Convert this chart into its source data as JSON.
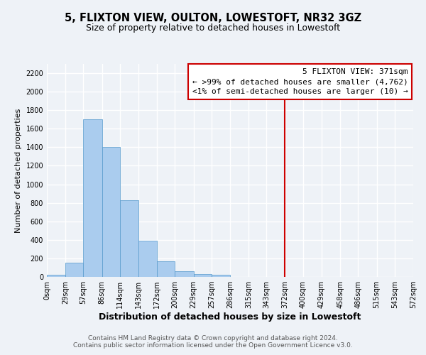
{
  "title": "5, FLIXTON VIEW, OULTON, LOWESTOFT, NR32 3GZ",
  "subtitle": "Size of property relative to detached houses in Lowestoft",
  "xlabel": "Distribution of detached houses by size in Lowestoft",
  "ylabel": "Number of detached properties",
  "bar_edges": [
    0,
    29,
    57,
    86,
    114,
    143,
    172,
    200,
    229,
    257,
    286,
    315,
    343,
    372,
    400,
    429,
    458,
    486,
    515,
    543,
    572
  ],
  "bar_heights": [
    20,
    155,
    1700,
    1400,
    830,
    390,
    165,
    65,
    30,
    20,
    0,
    0,
    0,
    0,
    0,
    0,
    0,
    0,
    0,
    0
  ],
  "bar_color": "#aaccee",
  "bar_edgecolor": "#5599cc",
  "vline_x": 371,
  "vline_color": "#cc0000",
  "annotation_title": "5 FLIXTON VIEW: 371sqm",
  "annotation_line1": "← >99% of detached houses are smaller (4,762)",
  "annotation_line2": "<1% of semi-detached houses are larger (10) →",
  "annotation_box_color": "#ffffff",
  "annotation_border_color": "#cc0000",
  "ylim": [
    0,
    2300
  ],
  "yticks": [
    0,
    200,
    400,
    600,
    800,
    1000,
    1200,
    1400,
    1600,
    1800,
    2000,
    2200
  ],
  "xtick_labels": [
    "0sqm",
    "29sqm",
    "57sqm",
    "86sqm",
    "114sqm",
    "143sqm",
    "172sqm",
    "200sqm",
    "229sqm",
    "257sqm",
    "286sqm",
    "315sqm",
    "343sqm",
    "372sqm",
    "400sqm",
    "429sqm",
    "458sqm",
    "486sqm",
    "515sqm",
    "543sqm",
    "572sqm"
  ],
  "footnote1": "Contains HM Land Registry data © Crown copyright and database right 2024.",
  "footnote2": "Contains public sector information licensed under the Open Government Licence v3.0.",
  "background_color": "#eef2f7",
  "grid_color": "#ffffff",
  "title_fontsize": 10.5,
  "subtitle_fontsize": 9,
  "xlabel_fontsize": 9,
  "ylabel_fontsize": 8,
  "tick_fontsize": 7,
  "annotation_fontsize": 8,
  "footnote_fontsize": 6.5
}
